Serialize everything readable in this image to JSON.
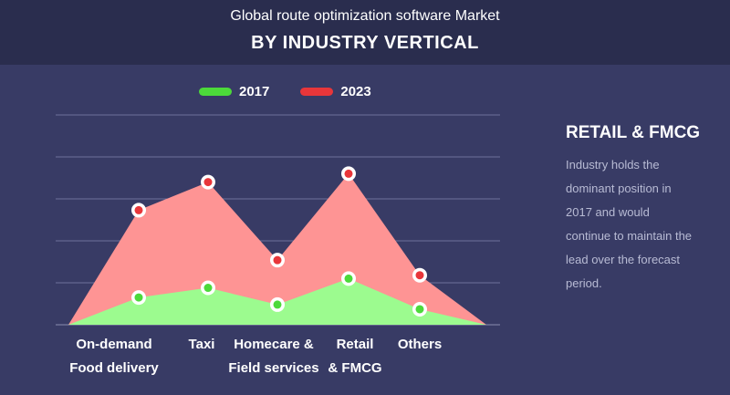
{
  "header": {
    "subtitle": "Global route optimization software Market",
    "title": "BY INDUSTRY VERTICAL"
  },
  "legend": [
    {
      "label": "2017",
      "color": "#4cd93a"
    },
    {
      "label": "2023",
      "color": "#e8363a"
    }
  ],
  "chart_data": {
    "type": "area",
    "categories": [
      [
        "On-demand",
        "Food delivery"
      ],
      [
        "Taxi"
      ],
      [
        "Homecare &",
        "Field services"
      ],
      [
        "Retail",
        "& FMCG"
      ],
      [
        "Others"
      ]
    ],
    "ylim": [
      0,
      5
    ],
    "grid": true,
    "legend_position": "top",
    "series": [
      {
        "name": "2017",
        "values": [
          0.65,
          0.88,
          0.48,
          1.1,
          0.37
        ],
        "fill": "#9cfb8f",
        "marker": "#4cd93a"
      },
      {
        "name": "2023",
        "values": [
          2.73,
          3.4,
          1.54,
          3.6,
          1.18
        ],
        "fill": "#fe9494",
        "marker": "#e8363a"
      }
    ]
  },
  "side_panel": {
    "title": "RETAIL & FMCG",
    "text": "Industry holds the dominant position in 2017 and would continue to maintain the lead over the forecast period."
  }
}
